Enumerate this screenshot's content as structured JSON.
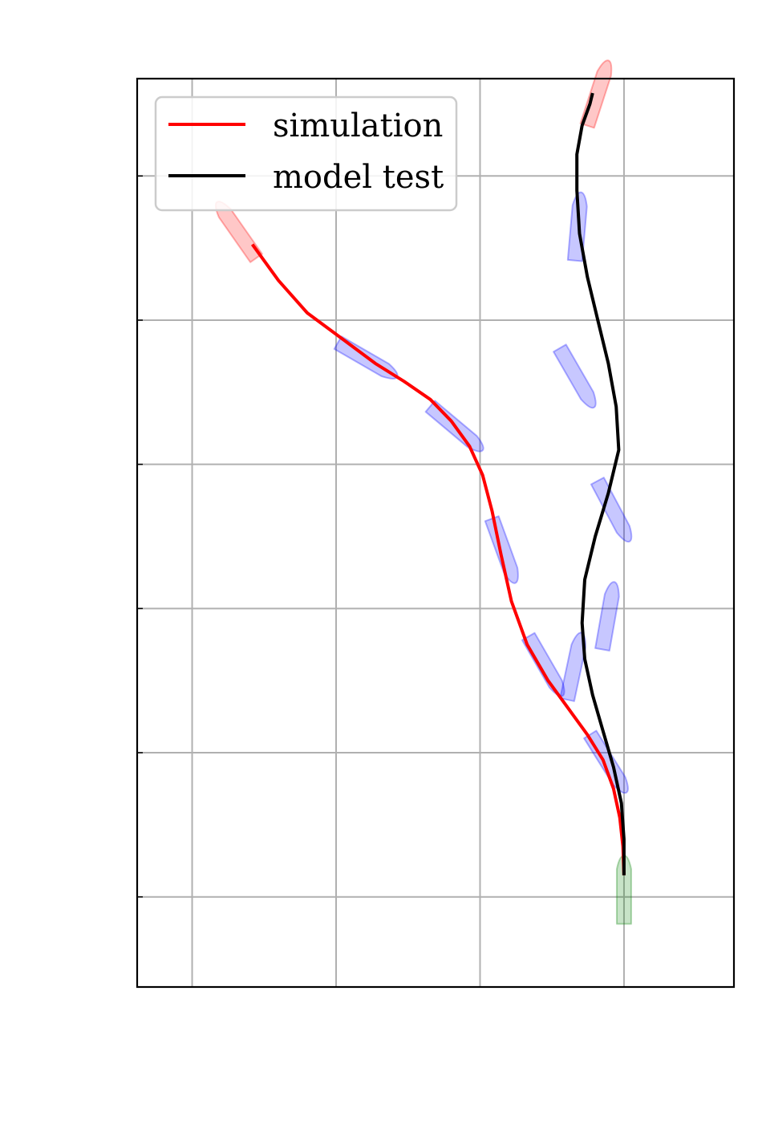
{
  "chart_data": {
    "type": "line",
    "title": "",
    "xlabel": "",
    "ylabel": "",
    "xlim": [
      -3.8,
      7.6
    ],
    "ylim": [
      -1.25,
      11.35
    ],
    "grid": true,
    "legend": {
      "position": "top-left",
      "entries": [
        "simulation",
        "model test"
      ]
    },
    "x_grid": [
      -2.75,
      0,
      2.75,
      5.5
    ],
    "y_grid": [
      0,
      2,
      4,
      6,
      8,
      10
    ],
    "series": [
      {
        "name": "simulation",
        "color": "#ff0000",
        "x": [
          5.5,
          5.48,
          5.42,
          5.3,
          5.1,
          4.8,
          4.45,
          4.05,
          3.65,
          3.35,
          3.15,
          2.98,
          2.8,
          2.55,
          2.2,
          1.8,
          1.3,
          0.75,
          0.1,
          -0.55,
          -1.1,
          -1.6
        ],
        "y": [
          0.3,
          0.7,
          1.1,
          1.5,
          1.9,
          2.25,
          2.6,
          3.0,
          3.5,
          4.1,
          4.75,
          5.35,
          5.85,
          6.25,
          6.6,
          6.9,
          7.15,
          7.4,
          7.75,
          8.1,
          8.55,
          9.05
        ]
      },
      {
        "name": "model test",
        "color": "#000000",
        "x": [
          5.5,
          5.5,
          5.45,
          5.3,
          5.1,
          4.9,
          4.75,
          4.7,
          4.75,
          4.95,
          5.2,
          5.4,
          5.35,
          5.2,
          5.0,
          4.8,
          4.65,
          4.6,
          4.6,
          4.7,
          4.85,
          4.9
        ],
        "y": [
          0.3,
          0.8,
          1.3,
          1.8,
          2.3,
          2.8,
          3.3,
          3.8,
          4.4,
          5.0,
          5.6,
          6.2,
          6.8,
          7.4,
          8.0,
          8.6,
          9.2,
          9.8,
          10.3,
          10.7,
          11.0,
          11.15
        ]
      }
    ],
    "ship_outlines": [
      {
        "state": "start",
        "color": "#008000",
        "x": 5.5,
        "y": 0.1,
        "heading_deg": 90
      },
      {
        "state": "intermediate",
        "color": "#0000ff",
        "x": 0.6,
        "y": 7.45,
        "heading_deg": -30
      },
      {
        "state": "intermediate",
        "color": "#0000ff",
        "x": 2.3,
        "y": 6.5,
        "heading_deg": -40
      },
      {
        "state": "intermediate",
        "color": "#0000ff",
        "x": 3.2,
        "y": 4.8,
        "heading_deg": -70
      },
      {
        "state": "intermediate",
        "color": "#0000ff",
        "x": 4.0,
        "y": 3.2,
        "heading_deg": -60
      },
      {
        "state": "intermediate",
        "color": "#0000ff",
        "x": 5.2,
        "y": 1.85,
        "heading_deg": -58
      },
      {
        "state": "intermediate",
        "color": "#0000ff",
        "x": 5.3,
        "y": 5.35,
        "heading_deg": -62
      },
      {
        "state": "intermediate",
        "color": "#0000ff",
        "x": 4.6,
        "y": 7.2,
        "heading_deg": -60
      },
      {
        "state": "intermediate",
        "color": "#0000ff",
        "x": 5.2,
        "y": 3.9,
        "heading_deg": 80
      },
      {
        "state": "intermediate",
        "color": "#0000ff",
        "x": 4.62,
        "y": 9.3,
        "heading_deg": 85
      },
      {
        "state": "intermediate",
        "color": "#0000ff",
        "x": 4.55,
        "y": 3.2,
        "heading_deg": 78
      },
      {
        "state": "end",
        "color": "#ff0000",
        "x": -1.9,
        "y": 9.25,
        "heading_deg": 125
      },
      {
        "state": "end",
        "color": "#ff0000",
        "x": 5.0,
        "y": 11.15,
        "heading_deg": 72
      }
    ]
  }
}
